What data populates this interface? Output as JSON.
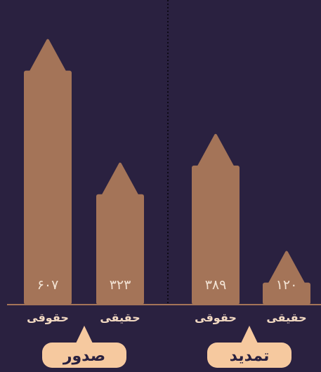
{
  "colors": {
    "background": "#2a2140",
    "bar": "#a47458",
    "baseline": "#a47458",
    "value_text": "#f2e2d3",
    "category_text": "#f2d9c2",
    "group_box": "#f6c99f",
    "group_text": "#2a2140",
    "divider": "#0e0a17"
  },
  "chart_data": {
    "type": "bar",
    "ylim": [
      0,
      700
    ],
    "groups": [
      {
        "label": "صدور",
        "bars": [
          {
            "category": "حقوقی",
            "value": 607,
            "value_label": "۶۰۷"
          },
          {
            "category": "حقیقی",
            "value": 323,
            "value_label": "۳۲۳"
          }
        ]
      },
      {
        "label": "تمدید",
        "bars": [
          {
            "category": "حقوقی",
            "value": 389,
            "value_label": "۳۸۹"
          },
          {
            "category": "حقیقی",
            "value": 120,
            "value_label": "۱۲۰"
          }
        ]
      }
    ]
  }
}
